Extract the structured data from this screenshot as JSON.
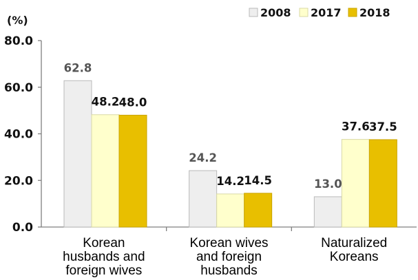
{
  "chart_data": {
    "type": "bar",
    "unit_label": "(%)",
    "categories": [
      [
        "Korean",
        "husbands and",
        "foreign wives"
      ],
      [
        "Korean wives",
        "and foreign",
        "husbands"
      ],
      [
        "Naturalized",
        "Koreans"
      ]
    ],
    "series": [
      {
        "name": "2008",
        "values": [
          62.8,
          24.2,
          13.0
        ],
        "labels": [
          "62.8",
          "24.2",
          "13.0"
        ],
        "color": "#eeeeee",
        "stroke": "#b9b9b9",
        "label_color": "#555555"
      },
      {
        "name": "2017",
        "values": [
          48.2,
          14.2,
          37.6
        ],
        "labels": [
          "48.2",
          "14.2",
          "37.6"
        ],
        "color": "#ffffcc",
        "stroke": "#d9d9a6",
        "label_color": "#111111"
      },
      {
        "name": "2018",
        "values": [
          48.0,
          14.5,
          37.5
        ],
        "labels": [
          "48.0",
          "14.5",
          "37.5"
        ],
        "color": "#e8bf00",
        "stroke": "#c9a400",
        "label_color": "#111111"
      }
    ],
    "ylim": [
      0,
      80
    ],
    "yticks": [
      "0.0",
      "20.0",
      "40.0",
      "60.0",
      "80.0"
    ],
    "ytick_values": [
      0,
      20,
      40,
      60,
      80
    ],
    "legend_position": "top-right",
    "grid": false
  }
}
